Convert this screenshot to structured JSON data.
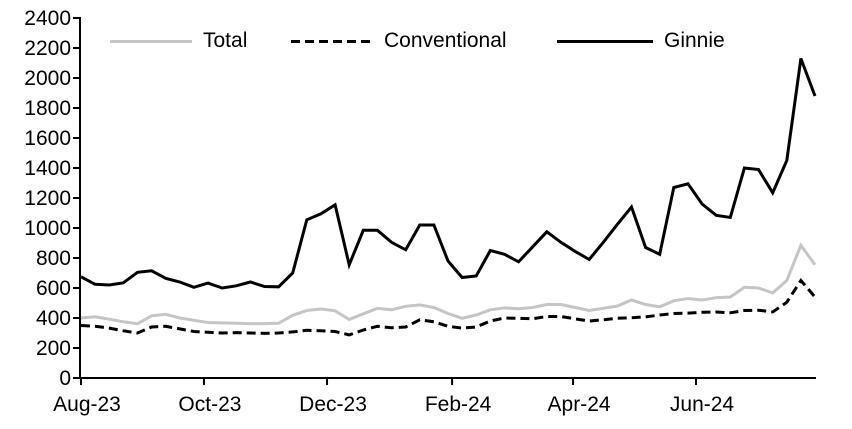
{
  "chart_data": {
    "type": "line",
    "x_unit": "weekly observations from Aug-2023 to early Aug-2024",
    "grid": false,
    "legend_position": "top",
    "ylim": [
      0,
      2400
    ],
    "ytick_step": 200,
    "x_ticks": [
      {
        "label": "Aug-23",
        "week": 0
      },
      {
        "label": "Oct-23",
        "week": 8.71
      },
      {
        "label": "Dec-23",
        "week": 17.43
      },
      {
        "label": "Feb-24",
        "week": 26.29
      },
      {
        "label": "Apr-24",
        "week": 34.86
      },
      {
        "label": "Jun-24",
        "week": 43.57
      }
    ],
    "series": [
      {
        "name": "Total",
        "color": "#c5c5c5",
        "style": "solid",
        "values": [
          400,
          408,
          393,
          375,
          362,
          415,
          425,
          400,
          385,
          370,
          367,
          365,
          363,
          363,
          365,
          418,
          450,
          460,
          448,
          390,
          428,
          465,
          455,
          478,
          487,
          470,
          430,
          398,
          420,
          455,
          467,
          462,
          470,
          490,
          490,
          470,
          450,
          465,
          480,
          520,
          490,
          475,
          515,
          530,
          520,
          535,
          540,
          605,
          600,
          567,
          650,
          885,
          755
        ]
      },
      {
        "name": "Conventional",
        "color": "#000000",
        "style": "dashed",
        "values": [
          350,
          345,
          333,
          315,
          300,
          340,
          345,
          327,
          310,
          305,
          300,
          303,
          300,
          297,
          300,
          307,
          318,
          315,
          310,
          287,
          320,
          345,
          335,
          340,
          388,
          375,
          345,
          333,
          340,
          380,
          400,
          398,
          395,
          410,
          410,
          395,
          380,
          388,
          398,
          402,
          407,
          420,
          430,
          433,
          438,
          440,
          435,
          450,
          452,
          440,
          505,
          650,
          540
        ]
      },
      {
        "name": "Ginnie",
        "color": "#000000",
        "style": "solid",
        "values": [
          675,
          625,
          620,
          635,
          705,
          715,
          665,
          640,
          605,
          633,
          600,
          615,
          640,
          610,
          608,
          700,
          1055,
          1095,
          1155,
          755,
          985,
          985,
          905,
          855,
          1020,
          1020,
          780,
          670,
          680,
          850,
          825,
          775,
          875,
          975,
          905,
          845,
          790,
          905,
          1025,
          1140,
          870,
          825,
          1270,
          1295,
          1160,
          1085,
          1070,
          1400,
          1390,
          1235,
          1450,
          2130,
          1880
        ]
      }
    ]
  }
}
